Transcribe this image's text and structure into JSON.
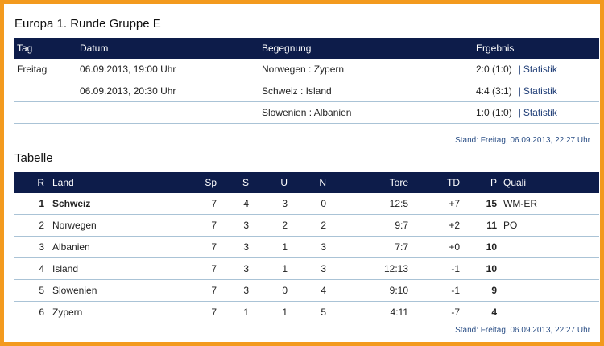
{
  "section1": {
    "title": "Europa 1. Runde Gruppe E",
    "headers": {
      "tag": "Tag",
      "datum": "Datum",
      "begegnung": "Begegnung",
      "ergebnis": "Ergebnis"
    },
    "rows": [
      {
        "tag": "Freitag",
        "datum": "06.09.2013, 19:00 Uhr",
        "begegnung": "Norwegen : Zypern",
        "ergebnis": "2:0 (1:0)",
        "link": "Statistik"
      },
      {
        "tag": "",
        "datum": "06.09.2013, 20:30 Uhr",
        "begegnung": "Schweiz : Island",
        "ergebnis": "4:4 (3:1)",
        "link": "Statistik"
      },
      {
        "tag": "",
        "datum": "",
        "begegnung": "Slowenien : Albanien",
        "ergebnis": "1:0 (1:0)",
        "link": "Statistik"
      }
    ],
    "stand": "Stand: Freitag, 06.09.2013, 22:27 Uhr"
  },
  "section2": {
    "title": "Tabelle",
    "headers": {
      "r": "R",
      "land": "Land",
      "sp": "Sp",
      "s": "S",
      "u": "U",
      "n": "N",
      "tore": "Tore",
      "td": "TD",
      "p": "P",
      "quali": "Quali"
    },
    "rows": [
      {
        "r": "1",
        "land": "Schweiz",
        "sp": "7",
        "s": "4",
        "u": "3",
        "n": "0",
        "tore": "12:5",
        "td": "+7",
        "p": "15",
        "quali": "WM-ER"
      },
      {
        "r": "2",
        "land": "Norwegen",
        "sp": "7",
        "s": "3",
        "u": "2",
        "n": "2",
        "tore": "9:7",
        "td": "+2",
        "p": "11",
        "quali": "PO"
      },
      {
        "r": "3",
        "land": "Albanien",
        "sp": "7",
        "s": "3",
        "u": "1",
        "n": "3",
        "tore": "7:7",
        "td": "+0",
        "p": "10",
        "quali": ""
      },
      {
        "r": "4",
        "land": "Island",
        "sp": "7",
        "s": "3",
        "u": "1",
        "n": "3",
        "tore": "12:13",
        "td": "-1",
        "p": "10",
        "quali": ""
      },
      {
        "r": "5",
        "land": "Slowenien",
        "sp": "7",
        "s": "3",
        "u": "0",
        "n": "4",
        "tore": "9:10",
        "td": "-1",
        "p": "9",
        "quali": ""
      },
      {
        "r": "6",
        "land": "Zypern",
        "sp": "7",
        "s": "1",
        "u": "1",
        "n": "5",
        "tore": "4:11",
        "td": "-7",
        "p": "4",
        "quali": ""
      }
    ],
    "stand": "Stand: Freitag, 06.09.2013, 22:27 Uhr"
  },
  "colors": {
    "frame": "#f39a1e",
    "header_bg": "#0d1c4a",
    "row_line": "#aac3d6",
    "link": "#1f3d76"
  }
}
